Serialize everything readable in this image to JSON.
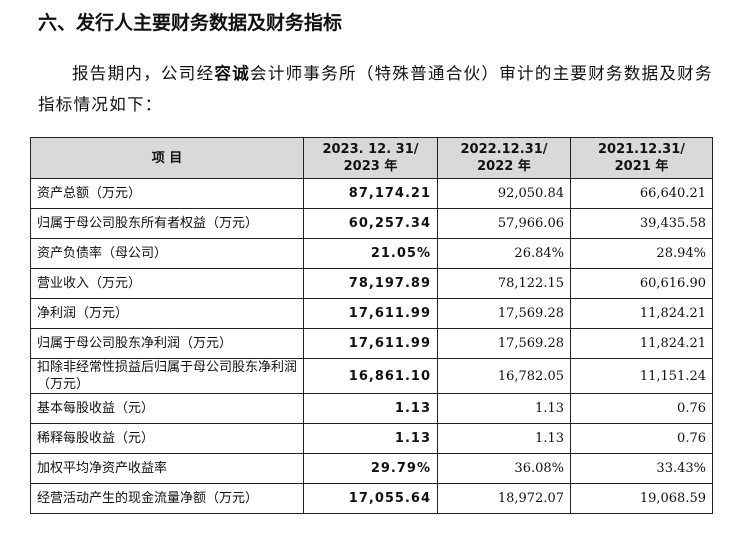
{
  "heading": "六、发行人主要财务数据及财务指标",
  "paragraph": {
    "before": "报告期内，公司经",
    "bold": "容诚",
    "after": "会计师事务所（特殊普通合伙）审计的主要财务数据及财务指标情况如下："
  },
  "table": {
    "header": [
      [
        "项 目"
      ],
      [
        "2023. 12. 31/",
        "2023 年"
      ],
      [
        "2022.12.31/",
        "2022 年"
      ],
      [
        "2021.12.31/",
        "2021 年"
      ]
    ],
    "rows": [
      [
        "资产总额（万元）",
        "87,174.21",
        "92,050.84",
        "66,640.21"
      ],
      [
        "归属于母公司股东所有者权益（万元）",
        "60,257.34",
        "57,966.06",
        "39,435.58"
      ],
      [
        "资产负债率（母公司）",
        "21.05%",
        "26.84%",
        "28.94%"
      ],
      [
        "营业收入（万元）",
        "78,197.89",
        "78,122.15",
        "60,616.90"
      ],
      [
        "净利润（万元）",
        "17,611.99",
        "17,569.28",
        "11,824.21"
      ],
      [
        "归属于母公司股东净利润（万元）",
        "17,611.99",
        "17,569.28",
        "11,824.21"
      ],
      [
        "扣除非经常性损益后归属于母公司股东净利润（万元）",
        "16,861.10",
        "16,782.05",
        "11,151.24"
      ],
      [
        "基本每股收益（元）",
        "1.13",
        "1.13",
        "0.76"
      ],
      [
        "稀释每股收益（元）",
        "1.13",
        "1.13",
        "0.76"
      ],
      [
        "加权平均净资产收益率",
        "29.79%",
        "36.08%",
        "33.43%"
      ],
      [
        "经营活动产生的现金流量净额（万元）",
        "17,055.64",
        "18,972.07",
        "19,068.59"
      ]
    ]
  }
}
